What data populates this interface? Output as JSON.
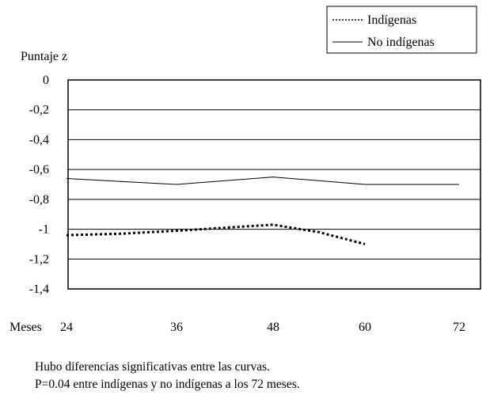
{
  "chart_data": {
    "type": "line",
    "ylabel": "Puntaje z",
    "xlabel": "Meses",
    "x_ticks": [
      24,
      36,
      48,
      60,
      72
    ],
    "xlim": [
      24,
      72
    ],
    "ylim": [
      -1.4,
      0
    ],
    "y_ticks": [
      0,
      -0.2,
      -0.4,
      -0.6,
      -0.8,
      -1,
      -1.2,
      -1.4
    ],
    "y_tick_labels": [
      "0",
      "-0,2",
      "-0,4",
      "-0,6",
      "-0,8",
      "-1",
      "-1,2",
      "-1,4"
    ],
    "grid": true,
    "legend_position": "top-right",
    "series": [
      {
        "name": "Indígenas",
        "style": "dotted",
        "x": [
          24,
          30,
          36,
          42,
          48,
          54,
          60
        ],
        "y": [
          -1.04,
          -1.03,
          -1.01,
          -0.99,
          -0.97,
          -1.02,
          -1.1
        ]
      },
      {
        "name": "No indígenas",
        "style": "solid",
        "x": [
          24,
          36,
          48,
          60,
          72
        ],
        "y": [
          -0.66,
          -0.7,
          -0.65,
          -0.7,
          -0.7
        ]
      }
    ]
  },
  "notes": {
    "line1": "Hubo diferencias significativas entre las curvas.",
    "line2": "P=0.04 entre indígenas y no indígenas a los 72 meses."
  }
}
